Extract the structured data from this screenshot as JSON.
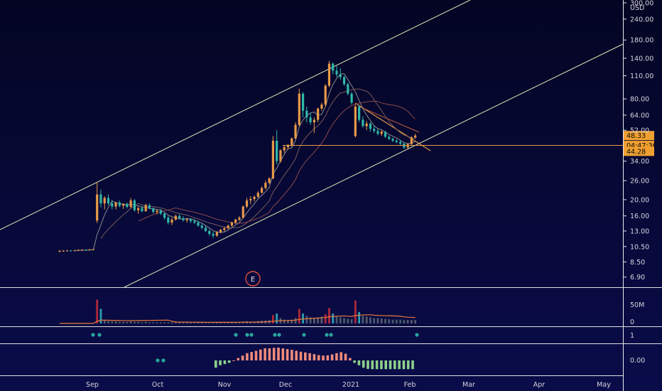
{
  "chart_data": {
    "type": "candlestick",
    "currency_label": "USD",
    "y_scale": "log",
    "ylim": [
      6.0,
      300.0
    ],
    "y_ticks": [
      "300.00",
      "240.00",
      "180.00",
      "140.00",
      "110.00",
      "80.00",
      "64.00",
      "52.00",
      "34.00",
      "26.00",
      "20.00",
      "16.00",
      "13.00",
      "10.50",
      "8.50",
      "6.90"
    ],
    "x_ticks": [
      "Sep",
      "Oct",
      "Nov",
      "Dec",
      "2021",
      "Feb",
      "Mar",
      "Apr",
      "May"
    ],
    "price_tags": [
      {
        "label": "48.33",
        "value": 48.33,
        "color": "#f0a030"
      },
      {
        "label": "04:47:36",
        "value": 42.2,
        "color": "#f0a030"
      },
      {
        "label": "44.28",
        "value": 38.9,
        "color": "#f0a030"
      }
    ],
    "horizontal_level": 42.2,
    "earnings_marker": "E",
    "candles": [
      [
        9.8,
        10,
        9.7,
        9.9
      ],
      [
        9.9,
        10,
        9.8,
        9.9
      ],
      [
        9.9,
        10,
        9.8,
        9.95
      ],
      [
        9.95,
        10,
        9.8,
        9.9
      ],
      [
        9.9,
        10,
        9.8,
        10
      ],
      [
        10,
        10.1,
        9.9,
        10
      ],
      [
        10,
        10.1,
        9.9,
        10.05
      ],
      [
        10.05,
        10.1,
        9.9,
        10
      ],
      [
        10,
        10.1,
        9.9,
        10.1
      ],
      [
        10.1,
        10.2,
        10,
        10.1
      ],
      [
        15,
        25.5,
        14.5,
        21.5
      ],
      [
        21.5,
        23,
        18,
        19
      ],
      [
        19,
        21,
        17.5,
        20.5
      ],
      [
        20.5,
        21.5,
        18.5,
        19
      ],
      [
        19,
        20,
        17.5,
        18.2
      ],
      [
        18.2,
        19.5,
        17.5,
        19.2
      ],
      [
        19.2,
        19.8,
        18,
        18.4
      ],
      [
        18.4,
        19,
        17.6,
        18.9
      ],
      [
        18.9,
        19.2,
        17.8,
        18.1
      ],
      [
        18.1,
        20.5,
        17.8,
        19.8
      ],
      [
        19.8,
        20.2,
        17,
        17.3
      ],
      [
        17.3,
        18.2,
        16.5,
        17.8
      ],
      [
        17.8,
        18.4,
        16.8,
        17.1
      ],
      [
        17.1,
        18.9,
        16.9,
        18.5
      ],
      [
        18.5,
        19,
        17.6,
        17.8
      ],
      [
        17.8,
        18,
        16.5,
        16.9
      ],
      [
        16.9,
        17.5,
        16.3,
        17.2
      ],
      [
        17.2,
        17.6,
        16.2,
        16.5
      ],
      [
        16.5,
        16.8,
        15.2,
        15.6
      ],
      [
        15.6,
        16,
        14.2,
        14.6
      ],
      [
        14.6,
        15.6,
        14.1,
        15.2
      ],
      [
        15.2,
        16.3,
        15,
        16
      ],
      [
        16,
        16.4,
        15.2,
        15.5
      ],
      [
        15.5,
        15.9,
        14.8,
        15.1
      ],
      [
        15.1,
        15.6,
        14.6,
        15.3
      ],
      [
        15.3,
        15.5,
        14.5,
        14.9
      ],
      [
        14.9,
        15.4,
        14.3,
        14.6
      ],
      [
        14.6,
        15,
        13.8,
        14
      ],
      [
        14,
        14.4,
        13.3,
        13.6
      ],
      [
        13.6,
        14,
        12.8,
        13
      ],
      [
        13,
        13.3,
        12.2,
        12.5
      ],
      [
        12.5,
        12.9,
        11.8,
        12.2
      ],
      [
        12.2,
        13,
        12,
        12.8
      ],
      [
        12.8,
        13.4,
        12.6,
        13.2
      ],
      [
        13.2,
        13.8,
        12.9,
        13.5
      ],
      [
        13.5,
        14.2,
        13.3,
        14
      ],
      [
        14,
        14.8,
        13.8,
        14.6
      ],
      [
        14.6,
        15.4,
        14.3,
        15.2
      ],
      [
        15.2,
        16,
        14.9,
        15.6
      ],
      [
        15.6,
        18.5,
        15.5,
        18.2
      ],
      [
        18.2,
        20.5,
        17.8,
        19.8
      ],
      [
        19.8,
        21,
        18.8,
        20.2
      ],
      [
        20.2,
        21.2,
        19.5,
        20.8
      ],
      [
        20.8,
        22.5,
        20.4,
        22
      ],
      [
        22,
        24,
        21.8,
        23.5
      ],
      [
        23.5,
        26,
        23,
        25.2
      ],
      [
        25.2,
        27.2,
        24.8,
        26.8
      ],
      [
        26.8,
        48,
        26.5,
        45
      ],
      [
        45,
        52,
        32.5,
        34
      ],
      [
        34,
        40,
        33.2,
        39.5
      ],
      [
        39.5,
        42,
        38,
        41.2
      ],
      [
        41.2,
        43,
        39.8,
        42.5
      ],
      [
        42.5,
        47,
        41.5,
        46.5
      ],
      [
        46.5,
        58,
        46,
        56
      ],
      [
        56,
        92,
        55,
        86
      ],
      [
        86,
        88,
        62,
        68
      ],
      [
        68,
        72,
        58,
        62
      ],
      [
        62,
        66,
        56,
        58
      ],
      [
        58,
        62,
        50,
        60
      ],
      [
        60,
        71,
        58,
        70
      ],
      [
        70,
        76,
        68,
        74
      ],
      [
        74,
        98,
        72,
        96
      ],
      [
        96,
        135,
        94,
        130
      ],
      [
        130,
        132,
        112,
        118
      ],
      [
        118,
        126,
        108,
        112
      ],
      [
        112,
        122,
        104,
        108
      ],
      [
        108,
        110,
        96,
        98
      ],
      [
        98,
        100,
        84,
        86
      ],
      [
        86,
        88,
        74,
        76
      ],
      [
        48,
        74,
        47,
        72
      ],
      [
        72,
        74,
        58,
        60
      ],
      [
        60,
        63,
        54,
        55
      ],
      [
        55,
        59,
        52,
        57
      ],
      [
        57,
        58,
        51,
        53
      ],
      [
        53,
        55,
        50,
        51.5
      ],
      [
        51.5,
        53,
        48.5,
        49.5
      ],
      [
        49.5,
        52,
        48,
        51
      ],
      [
        51,
        51.5,
        46.8,
        47.5
      ],
      [
        47.5,
        48.5,
        45.5,
        46.2
      ],
      [
        46.2,
        47,
        44.2,
        45
      ],
      [
        45,
        46,
        43.5,
        44.2
      ],
      [
        44.2,
        45.5,
        42.2,
        43.2
      ],
      [
        43.2,
        44,
        40.2,
        41
      ],
      [
        41,
        43.5,
        40.5,
        43
      ],
      [
        43,
        48,
        42.5,
        47
      ],
      [
        47,
        49.5,
        46.5,
        48.33
      ]
    ],
    "volume": [
      0.3,
      0.3,
      0.3,
      0.3,
      0.3,
      0.3,
      0.3,
      0.3,
      0.3,
      0.3,
      62,
      38,
      8,
      6,
      5,
      5,
      4,
      4,
      4,
      5,
      4,
      4,
      3,
      4,
      3,
      3,
      3,
      3,
      3,
      3,
      3,
      3,
      3,
      3,
      3,
      3,
      3,
      3,
      3,
      3,
      3,
      3,
      3,
      3,
      3,
      3,
      4,
      4,
      4,
      5,
      6,
      5,
      5,
      6,
      7,
      8,
      9,
      22,
      26,
      14,
      10,
      9,
      10,
      14,
      38,
      26,
      20,
      16,
      14,
      16,
      18,
      24,
      40,
      26,
      18,
      16,
      14,
      12,
      11,
      60,
      30,
      20,
      18,
      16,
      14,
      14,
      13,
      12,
      11,
      10,
      10,
      10,
      9,
      9,
      9,
      9
    ],
    "oscillator": [
      -0.03,
      -0.02,
      -0.015,
      -0.01,
      0.0,
      0.01,
      0.02,
      0.03,
      0.035,
      0.04,
      0.045,
      0.05,
      0.05,
      0.052,
      0.053,
      0.05,
      0.047,
      0.044,
      0.04,
      0.036,
      0.033,
      0.03,
      0.026,
      0.022,
      0.02,
      0.021,
      0.025,
      0.03,
      0.034,
      0.028,
      0.01,
      -0.01,
      -0.02,
      -0.03,
      -0.035,
      -0.036,
      -0.036,
      -0.036,
      -0.036,
      -0.036,
      -0.036,
      -0.036,
      -0.036,
      -0.036,
      -0.036
    ],
    "dots_row1_x": [
      131,
      140,
      332,
      348,
      354,
      387,
      393,
      428,
      460,
      466,
      587
    ],
    "dots_row2_x": [
      222,
      230
    ]
  },
  "colors": {
    "up": "#e89a48",
    "down": "#2fb8a8",
    "channel": "#d8e8b4",
    "ma_fast": "#8a8a8a",
    "ma_slow": "#8a4848",
    "volume_line": "#e87a3a",
    "osc_pos": "#ef8a7a",
    "osc_neg": "#8ed08a",
    "dot": "#26a69a"
  },
  "axis": {
    "right_labels": {
      "vol": "50M",
      "vol_zero": "0",
      "ind1": "1",
      "osc_zero": "0.00"
    }
  }
}
